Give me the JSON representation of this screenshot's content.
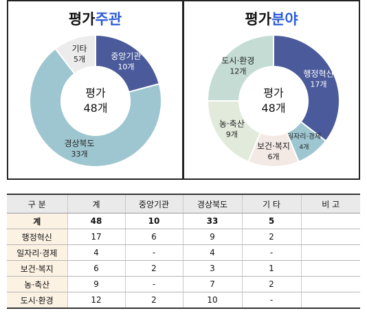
{
  "chart_data": [
    {
      "type": "pie",
      "variant": "donut",
      "title_prefix": "평가",
      "title_accent": "주관",
      "center_label": [
        "평가",
        "48개"
      ],
      "total": 48,
      "slices": [
        {
          "label": "중앙기관",
          "value": 10,
          "value_label": "10개",
          "color": "#4a5a9a"
        },
        {
          "label": "경상북도",
          "value": 33,
          "value_label": "33개",
          "color": "#9ec6d1"
        },
        {
          "label": "기타",
          "value": 5,
          "value_label": "5개",
          "color": "#ececec"
        }
      ]
    },
    {
      "type": "pie",
      "variant": "donut",
      "title_prefix": "평가",
      "title_accent": "분야",
      "center_label": [
        "평가",
        "48개"
      ],
      "total": 48,
      "slices": [
        {
          "label": "행정혁신",
          "value": 17,
          "value_label": "17개",
          "color": "#4a5a9a"
        },
        {
          "label": "일자리·경제",
          "value": 4,
          "value_label": "4개",
          "color": "#9ec6d1"
        },
        {
          "label": "보건·복지",
          "value": 6,
          "value_label": "6개",
          "color": "#f3e9e5"
        },
        {
          "label": "농·축산",
          "value": 9,
          "value_label": "9개",
          "color": "#e2eadc"
        },
        {
          "label": "도시·환경",
          "value": 12,
          "value_label": "12개",
          "color": "#c4dcd3"
        }
      ]
    }
  ],
  "table": {
    "headers": [
      "구  분",
      "계",
      "중앙기관",
      "경상북도",
      "기  타",
      "비  고"
    ],
    "rows": [
      [
        "계",
        "48",
        "10",
        "33",
        "5",
        ""
      ],
      [
        "행정혁신",
        "17",
        "6",
        "9",
        "2",
        ""
      ],
      [
        "일자리·경제",
        "4",
        "-",
        "4",
        "-",
        ""
      ],
      [
        "보건·복지",
        "6",
        "2",
        "3",
        "1",
        ""
      ],
      [
        "농·축산",
        "9",
        "-",
        "7",
        "2",
        ""
      ],
      [
        "도시·환경",
        "12",
        "2",
        "10",
        "-",
        ""
      ]
    ]
  }
}
